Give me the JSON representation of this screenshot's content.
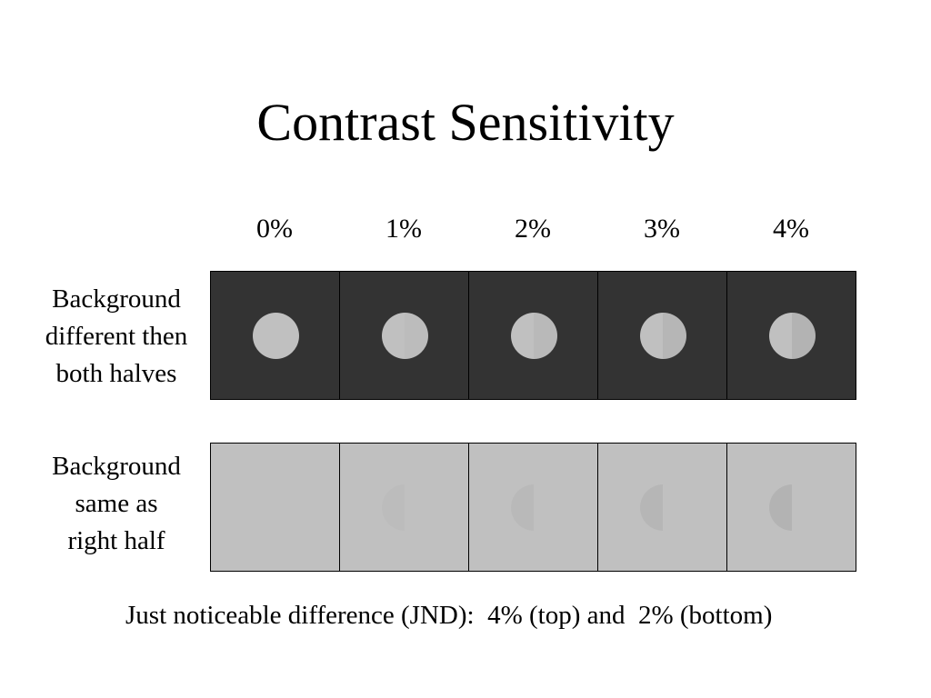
{
  "title": "Contrast Sensitivity",
  "columns": [
    "0%",
    "1%",
    "2%",
    "3%",
    "4%"
  ],
  "rows": [
    {
      "label": [
        "Background",
        "different then",
        "both halves"
      ],
      "background_color": "#333333",
      "left_half_colors": [
        "#c0c0c0",
        "#c0c0c0",
        "#c0c0c0",
        "#c0c0c0",
        "#c0c0c0"
      ],
      "right_half_colors": [
        "#c0c0c0",
        "#bcbcbc",
        "#b9b9b9",
        "#b6b6b6",
        "#b3b3b3"
      ]
    },
    {
      "label": [
        "Background",
        "same as",
        "right half"
      ],
      "background_color": "#c0c0c0",
      "left_half_colors": [
        "#c0c0c0",
        "#bcbcbc",
        "#b9b9b9",
        "#b6b6b6",
        "#b3b3b3"
      ],
      "right_half_colors": [
        "#c0c0c0",
        "#c0c0c0",
        "#c0c0c0",
        "#c0c0c0",
        "#c0c0c0"
      ]
    }
  ],
  "footer": "Just noticeable difference (JND):  4% (top) and  2% (bottom)"
}
